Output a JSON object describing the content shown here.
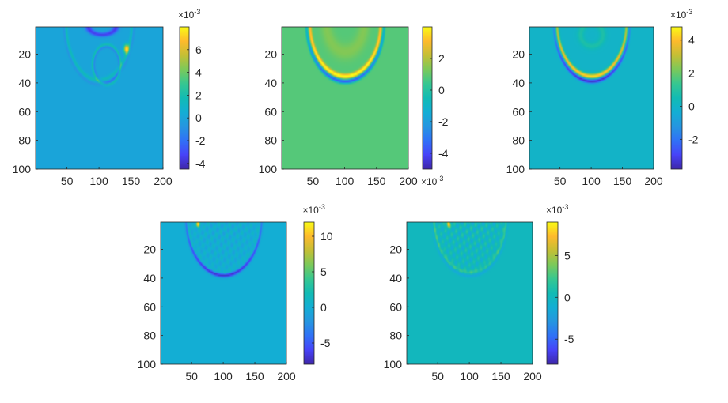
{
  "chart_data": [
    {
      "type": "heatmap",
      "title": "",
      "xlabel": "",
      "ylabel": "",
      "xlim": [
        1,
        200
      ],
      "ylim": [
        1,
        100
      ],
      "y_reversed": true,
      "x_ticks": [
        50,
        100,
        150,
        200
      ],
      "y_ticks": [
        20,
        40,
        60,
        80,
        100
      ],
      "colorbar": {
        "range": [
          -4.5,
          8
        ],
        "ticks": [
          -4,
          -2,
          0,
          2,
          4,
          6
        ],
        "exponent_label": "×10",
        "exponent_power": "-3"
      },
      "background_value": 0,
      "features": [
        {
          "kind": "outer-front",
          "peak": 1.6,
          "trough": -0.8
        },
        {
          "kind": "inner-circle",
          "peak": 2.2
        },
        {
          "kind": "hot-spot",
          "value": 7.5
        }
      ]
    },
    {
      "type": "heatmap",
      "title": "",
      "xlabel": "",
      "ylabel": "",
      "xlim": [
        1,
        200
      ],
      "ylim": [
        1,
        100
      ],
      "y_reversed": true,
      "x_ticks": [
        50,
        100,
        150,
        200
      ],
      "y_ticks": [
        20,
        40,
        60,
        80,
        100
      ],
      "colorbar": {
        "range": [
          -5,
          4
        ],
        "ticks": [
          -4,
          -2,
          0,
          2
        ],
        "exponent_label": "×10",
        "exponent_power": "-3"
      },
      "background_value": 0.8,
      "features": [
        {
          "kind": "front",
          "peak": 3.8,
          "trough": -4.5
        }
      ]
    },
    {
      "type": "heatmap",
      "title": "",
      "xlabel": "",
      "ylabel": "",
      "xlim": [
        1,
        200
      ],
      "ylim": [
        1,
        100
      ],
      "y_reversed": true,
      "x_ticks": [
        50,
        100,
        150,
        200
      ],
      "y_ticks": [
        20,
        40,
        60,
        80,
        100
      ],
      "colorbar": {
        "range": [
          -3.8,
          4.8
        ],
        "ticks": [
          -2,
          0,
          2,
          4
        ],
        "exponent_label": "×10",
        "exponent_power": "-3"
      },
      "background_value": 0,
      "features": [
        {
          "kind": "front",
          "peak": 4.6,
          "trough": -3.5
        }
      ]
    },
    {
      "type": "heatmap",
      "title": "",
      "xlabel": "",
      "ylabel": "",
      "xlim": [
        1,
        200
      ],
      "ylim": [
        1,
        100
      ],
      "y_reversed": true,
      "x_ticks": [
        50,
        100,
        150,
        200
      ],
      "y_ticks": [
        20,
        40,
        60,
        80,
        100
      ],
      "colorbar": {
        "range": [
          -8,
          12
        ],
        "ticks": [
          -5,
          0,
          5,
          10
        ],
        "exponent_label": "×10",
        "exponent_power": "-3"
      },
      "background_value": 0,
      "features": [
        {
          "kind": "front",
          "peak": 1.5,
          "trough": -7.5
        },
        {
          "kind": "interior-texture",
          "amplitude": 2.5
        },
        {
          "kind": "hot-spot",
          "value": 11
        }
      ]
    },
    {
      "type": "heatmap",
      "title": "",
      "xlabel": "",
      "ylabel": "",
      "xlim": [
        1,
        200
      ],
      "ylim": [
        1,
        100
      ],
      "y_reversed": true,
      "x_ticks": [
        50,
        100,
        150,
        200
      ],
      "y_ticks": [
        20,
        40,
        60,
        80,
        100
      ],
      "colorbar": {
        "range": [
          -8,
          9
        ],
        "ticks": [
          -5,
          0,
          5
        ],
        "exponent_label": "×10",
        "exponent_power": "-3"
      },
      "background_value": 0,
      "features": [
        {
          "kind": "front",
          "peak": 3,
          "trough": -2
        },
        {
          "kind": "interior-texture",
          "amplitude": 3
        },
        {
          "kind": "hot-spot",
          "value": 8.5
        }
      ]
    }
  ]
}
